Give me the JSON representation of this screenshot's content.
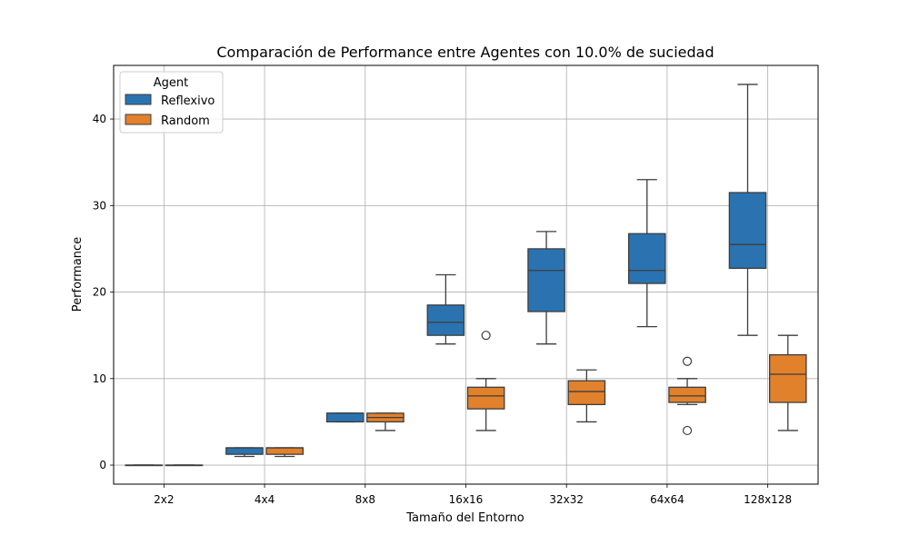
{
  "chart_data": {
    "type": "box",
    "title": "Comparación de Performance entre Agentes con 10.0% de suciedad",
    "xlabel": "Tamaño del Entorno",
    "ylabel": "Performance",
    "ylim": [
      -2.2,
      46.2
    ],
    "yticks": [
      0,
      10,
      20,
      30,
      40
    ],
    "grid": true,
    "legend": {
      "title": "Agent",
      "position": "top-left"
    },
    "categories": [
      "2x2",
      "4x4",
      "8x8",
      "16x16",
      "32x32",
      "64x64",
      "128x128"
    ],
    "series": [
      {
        "name": "Reflexivo",
        "color": "#2b73b0",
        "boxes": [
          {
            "whisker_low": 0,
            "q1": 0,
            "median": 0,
            "q3": 0,
            "whisker_high": 0,
            "outliers": []
          },
          {
            "whisker_low": 1,
            "q1": 1.25,
            "median": 2,
            "q3": 2,
            "whisker_high": 2,
            "outliers": []
          },
          {
            "whisker_low": 5,
            "q1": 5,
            "median": 6,
            "q3": 6,
            "whisker_high": 6,
            "outliers": []
          },
          {
            "whisker_low": 14,
            "q1": 15,
            "median": 16.5,
            "q3": 18.5,
            "whisker_high": 22,
            "outliers": []
          },
          {
            "whisker_low": 14,
            "q1": 17.75,
            "median": 22.5,
            "q3": 25,
            "whisker_high": 27,
            "outliers": []
          },
          {
            "whisker_low": 16,
            "q1": 21,
            "median": 22.5,
            "q3": 26.75,
            "whisker_high": 33,
            "outliers": []
          },
          {
            "whisker_low": 15,
            "q1": 22.75,
            "median": 25.5,
            "q3": 31.5,
            "whisker_high": 44,
            "outliers": []
          }
        ]
      },
      {
        "name": "Random",
        "color": "#e1812c",
        "boxes": [
          {
            "whisker_low": 0,
            "q1": 0,
            "median": 0,
            "q3": 0,
            "whisker_high": 0,
            "outliers": []
          },
          {
            "whisker_low": 1,
            "q1": 1.25,
            "median": 2,
            "q3": 2,
            "whisker_high": 2,
            "outliers": []
          },
          {
            "whisker_low": 4,
            "q1": 5,
            "median": 5.5,
            "q3": 6,
            "whisker_high": 6,
            "outliers": []
          },
          {
            "whisker_low": 4,
            "q1": 6.5,
            "median": 8,
            "q3": 9,
            "whisker_high": 10,
            "outliers": [
              15
            ]
          },
          {
            "whisker_low": 5,
            "q1": 7,
            "median": 8.5,
            "q3": 9.75,
            "whisker_high": 11,
            "outliers": []
          },
          {
            "whisker_low": 7,
            "q1": 7.25,
            "median": 8,
            "q3": 9,
            "whisker_high": 10,
            "outliers": [
              12,
              4
            ]
          },
          {
            "whisker_low": 4,
            "q1": 7.25,
            "median": 10.5,
            "q3": 12.75,
            "whisker_high": 15,
            "outliers": []
          }
        ]
      }
    ]
  }
}
